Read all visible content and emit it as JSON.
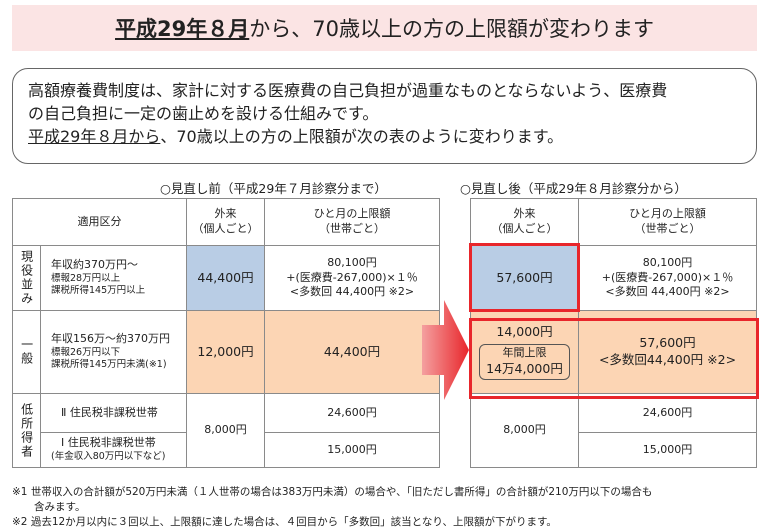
{
  "header": {
    "title_emphasis": "平成29年８月",
    "title_rest": "から、70歳以上の方の上限額が変わります"
  },
  "intro": {
    "line1": "高額療養費制度は、家計に対する医療費の自己負担が過重なものとならないよう、医療費",
    "line2": "の自己負担に一定の歯止めを設ける仕組みです。",
    "line3_emphasis": "平成29年８月から",
    "line3_rest": "、70歳以上の方の上限額が次の表のように変わります。"
  },
  "before": {
    "caption": "○見直し前（平成29年７月診察分まで）",
    "header": {
      "category": "適用区分",
      "outpatient": [
        "外来",
        "（個人ごと）"
      ],
      "monthly": [
        "ひと月の上限額",
        "（世帯ごと）"
      ]
    },
    "active": {
      "group": "現役並み",
      "label": [
        "年収約370万円～",
        "標報28万円以上",
        "課税所得145万円以上"
      ],
      "outpatient": "44,400円",
      "monthly": [
        "80,100円",
        "+(医療費-267,000)×１％",
        "<多数回 44,400円 ※2>"
      ]
    },
    "general": {
      "group": "一般",
      "label": [
        "年収156万～約370万円",
        "標報26万円以下",
        "課税所得145万円未満(※1)"
      ],
      "outpatient": "12,000円",
      "monthly": "44,400円"
    },
    "low": {
      "group": "低所得者",
      "label_2": "Ⅱ 住民税非課税世帯",
      "label_1": [
        "Ⅰ 住民税非課税世帯",
        "(年金収入80万円以下など)"
      ],
      "outpatient": "8,000円",
      "monthly_2": "24,600円",
      "monthly_1": "15,000円"
    }
  },
  "after": {
    "caption": "○見直し後（平成29年８月診察分から）",
    "header": {
      "outpatient": [
        "外来",
        "（個人ごと）"
      ],
      "monthly": [
        "ひと月の上限額",
        "（世帯ごと）"
      ]
    },
    "active": {
      "outpatient": "57,600円",
      "monthly": [
        "80,100円",
        "+(医療費-267,000)×１％",
        "<多数回 44,400円 ※2>"
      ]
    },
    "general": {
      "outpatient": "14,000円",
      "annual": [
        "年間上限",
        "14万4,000円"
      ],
      "monthly": [
        "57,600円",
        "<多数回44,400円 ※2>"
      ]
    },
    "low": {
      "outpatient": "8,000円",
      "monthly_2": "24,600円",
      "monthly_1": "15,000円"
    }
  },
  "footnotes": [
    "※1 世帯収入の合計額が520万円未満（１人世帯の場合は383万円未満）の場合や、「旧ただし書所得」の合計額が210万円以下の場合も",
    "含みます。",
    "※2 過去12か月以内に３回以上、上限額に達した場合は、４回目から「多数回」該当となり、上限額が下がります。"
  ]
}
